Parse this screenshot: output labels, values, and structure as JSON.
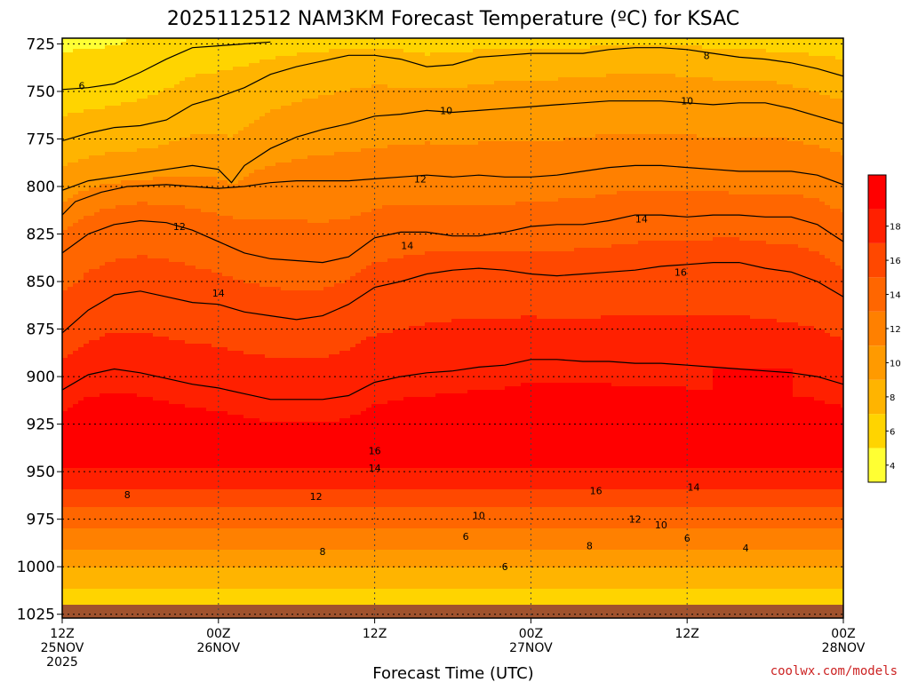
{
  "chart_data": {
    "type": "heatmap",
    "title": "2025112512 NAM3KM Forecast Temperature (ºC) for KSAC",
    "xlabel": "Forecast Time (UTC)",
    "ylabel": "",
    "credit": "coolwx.com/models",
    "x_hours_range": [
      0,
      60
    ],
    "x_ticks": [
      {
        "hour": 0,
        "line1": "12Z",
        "line2": "25NOV",
        "line3": "2025"
      },
      {
        "hour": 12,
        "line1": "00Z",
        "line2": "26NOV",
        "line3": ""
      },
      {
        "hour": 24,
        "line1": "12Z",
        "line2": "",
        "line3": ""
      },
      {
        "hour": 36,
        "line1": "00Z",
        "line2": "27NOV",
        "line3": ""
      },
      {
        "hour": 48,
        "line1": "12Z",
        "line2": "",
        "line3": ""
      },
      {
        "hour": 60,
        "line1": "00Z",
        "line2": "28NOV",
        "line3": ""
      }
    ],
    "y_ticks": [
      725,
      750,
      775,
      800,
      825,
      850,
      875,
      900,
      925,
      950,
      975,
      1000,
      1025
    ],
    "y_range_hpa": [
      722,
      1027
    ],
    "ground_hpa": 1020,
    "grid": true,
    "colorbar": {
      "ticks": [
        4,
        6,
        8,
        10,
        12,
        14,
        16,
        18
      ],
      "bins": [
        {
          "from": 3,
          "to": 5,
          "color": "#ffff33"
        },
        {
          "from": 5,
          "to": 7,
          "color": "#ffd400"
        },
        {
          "from": 7,
          "to": 9,
          "color": "#ffb400"
        },
        {
          "from": 9,
          "to": 11,
          "color": "#ff9a00"
        },
        {
          "from": 11,
          "to": 13,
          "color": "#ff8000"
        },
        {
          "from": 13,
          "to": 15,
          "color": "#ff6600"
        },
        {
          "from": 15,
          "to": 17,
          "color": "#ff4800"
        },
        {
          "from": 17,
          "to": 19,
          "color": "#ff2000"
        },
        {
          "from": 19,
          "to": 21,
          "color": "#ff0000"
        }
      ]
    },
    "ground_color": "#a0522d",
    "contours": [
      {
        "value": 6,
        "points": [
          [
            0,
            749
          ],
          [
            2,
            748
          ],
          [
            4,
            746
          ],
          [
            6,
            740
          ],
          [
            8,
            733
          ],
          [
            10,
            727
          ],
          [
            12,
            726
          ],
          [
            14,
            725
          ],
          [
            16,
            724
          ]
        ]
      },
      {
        "value": 8,
        "points": [
          [
            0,
            776
          ],
          [
            2,
            772
          ],
          [
            4,
            769
          ],
          [
            6,
            768
          ],
          [
            8,
            765
          ],
          [
            10,
            757
          ],
          [
            12,
            753
          ],
          [
            14,
            748
          ],
          [
            16,
            741
          ],
          [
            18,
            737
          ],
          [
            20,
            734
          ],
          [
            22,
            731
          ],
          [
            24,
            731
          ],
          [
            26,
            733
          ],
          [
            28,
            737
          ],
          [
            30,
            736
          ],
          [
            32,
            732
          ],
          [
            34,
            731
          ],
          [
            36,
            730
          ],
          [
            38,
            730
          ],
          [
            40,
            730
          ],
          [
            42,
            728
          ],
          [
            44,
            727
          ],
          [
            46,
            727
          ],
          [
            48,
            728
          ],
          [
            50,
            730
          ],
          [
            52,
            732
          ],
          [
            54,
            733
          ],
          [
            56,
            735
          ],
          [
            58,
            738
          ],
          [
            60,
            742
          ]
        ]
      },
      {
        "value": 10,
        "points": [
          [
            0,
            802
          ],
          [
            2,
            797
          ],
          [
            4,
            795
          ],
          [
            6,
            793
          ],
          [
            8,
            791
          ],
          [
            10,
            789
          ],
          [
            12,
            791
          ],
          [
            13,
            798
          ],
          [
            14,
            789
          ],
          [
            16,
            780
          ],
          [
            18,
            774
          ],
          [
            20,
            770
          ],
          [
            22,
            767
          ],
          [
            24,
            763
          ],
          [
            26,
            762
          ],
          [
            28,
            760
          ],
          [
            30,
            761
          ],
          [
            32,
            760
          ],
          [
            34,
            759
          ],
          [
            36,
            758
          ],
          [
            38,
            757
          ],
          [
            40,
            756
          ],
          [
            42,
            755
          ],
          [
            44,
            755
          ],
          [
            46,
            755
          ],
          [
            48,
            756
          ],
          [
            50,
            757
          ],
          [
            52,
            756
          ],
          [
            54,
            756
          ],
          [
            56,
            759
          ],
          [
            58,
            763
          ],
          [
            60,
            767
          ]
        ]
      },
      {
        "value": 12,
        "points": [
          [
            0,
            815
          ],
          [
            1,
            808
          ],
          [
            3,
            803
          ],
          [
            5,
            800
          ],
          [
            8,
            799
          ],
          [
            10,
            800
          ],
          [
            12,
            801
          ],
          [
            14,
            800
          ],
          [
            16,
            798
          ],
          [
            18,
            797
          ],
          [
            20,
            797
          ],
          [
            22,
            797
          ],
          [
            24,
            796
          ],
          [
            26,
            795
          ],
          [
            28,
            794
          ],
          [
            30,
            795
          ],
          [
            32,
            794
          ],
          [
            34,
            795
          ],
          [
            36,
            795
          ],
          [
            38,
            794
          ],
          [
            40,
            792
          ],
          [
            42,
            790
          ],
          [
            44,
            789
          ],
          [
            46,
            789
          ],
          [
            48,
            790
          ],
          [
            50,
            791
          ],
          [
            52,
            792
          ],
          [
            54,
            792
          ],
          [
            56,
            792
          ],
          [
            58,
            794
          ],
          [
            60,
            799
          ]
        ]
      },
      {
        "value": 14,
        "points": [
          [
            0,
            835
          ],
          [
            2,
            825
          ],
          [
            4,
            820
          ],
          [
            6,
            818
          ],
          [
            8,
            819
          ],
          [
            10,
            823
          ],
          [
            12,
            829
          ],
          [
            14,
            835
          ],
          [
            16,
            838
          ],
          [
            18,
            839
          ],
          [
            20,
            840
          ],
          [
            22,
            837
          ],
          [
            24,
            827
          ],
          [
            26,
            824
          ],
          [
            28,
            824
          ],
          [
            30,
            826
          ],
          [
            32,
            826
          ],
          [
            34,
            824
          ],
          [
            36,
            821
          ],
          [
            38,
            820
          ],
          [
            40,
            820
          ],
          [
            42,
            818
          ],
          [
            44,
            815
          ],
          [
            46,
            815
          ],
          [
            48,
            816
          ],
          [
            50,
            815
          ],
          [
            52,
            815
          ],
          [
            54,
            816
          ],
          [
            56,
            816
          ],
          [
            58,
            820
          ],
          [
            60,
            829
          ]
        ]
      },
      {
        "value": 16,
        "points": [
          [
            0,
            877
          ],
          [
            2,
            865
          ],
          [
            4,
            857
          ],
          [
            6,
            855
          ],
          [
            8,
            858
          ],
          [
            10,
            861
          ],
          [
            12,
            862
          ],
          [
            14,
            866
          ],
          [
            16,
            868
          ],
          [
            18,
            870
          ],
          [
            20,
            868
          ],
          [
            22,
            862
          ],
          [
            24,
            853
          ],
          [
            26,
            850
          ],
          [
            28,
            846
          ],
          [
            30,
            844
          ],
          [
            32,
            843
          ],
          [
            34,
            844
          ],
          [
            36,
            846
          ],
          [
            38,
            847
          ],
          [
            40,
            846
          ],
          [
            42,
            845
          ],
          [
            44,
            844
          ],
          [
            46,
            842
          ],
          [
            48,
            841
          ],
          [
            50,
            840
          ],
          [
            52,
            840
          ],
          [
            54,
            843
          ],
          [
            56,
            845
          ],
          [
            58,
            850
          ],
          [
            60,
            858
          ]
        ]
      },
      {
        "value": 18,
        "points": [
          [
            0,
            907
          ],
          [
            2,
            899
          ],
          [
            4,
            896
          ],
          [
            6,
            898
          ],
          [
            8,
            901
          ],
          [
            10,
            904
          ],
          [
            12,
            906
          ],
          [
            14,
            909
          ],
          [
            16,
            912
          ],
          [
            18,
            912
          ],
          [
            20,
            912
          ],
          [
            22,
            910
          ],
          [
            24,
            903
          ],
          [
            26,
            900
          ],
          [
            28,
            898
          ],
          [
            30,
            897
          ],
          [
            32,
            895
          ],
          [
            34,
            894
          ],
          [
            36,
            891
          ],
          [
            38,
            891
          ],
          [
            40,
            892
          ],
          [
            42,
            892
          ],
          [
            44,
            893
          ],
          [
            46,
            893
          ],
          [
            48,
            894
          ],
          [
            50,
            895
          ],
          [
            52,
            896
          ],
          [
            54,
            897
          ],
          [
            56,
            898
          ],
          [
            58,
            900
          ],
          [
            60,
            904
          ]
        ]
      }
    ],
    "contour_labels": [
      {
        "value": "6",
        "hour": 1.5,
        "hpa": 747
      },
      {
        "value": "8",
        "hour": 49.5,
        "hpa": 731
      },
      {
        "value": "10",
        "hour": 29.5,
        "hpa": 760
      },
      {
        "value": "10",
        "hour": 48.0,
        "hpa": 755
      },
      {
        "value": "12",
        "hour": 27.5,
        "hpa": 796
      },
      {
        "value": "12",
        "hour": 9.0,
        "hpa": 821
      },
      {
        "value": "14",
        "hour": 26.5,
        "hpa": 831
      },
      {
        "value": "14",
        "hour": 44.5,
        "hpa": 817
      },
      {
        "value": "14",
        "hour": 12.0,
        "hpa": 856
      },
      {
        "value": "16",
        "hour": 47.5,
        "hpa": 845
      },
      {
        "value": "16",
        "hour": 24.0,
        "hpa": 939
      },
      {
        "value": "14",
        "hour": 24.0,
        "hpa": 948
      },
      {
        "value": "16",
        "hour": 41.0,
        "hpa": 960
      },
      {
        "value": "14",
        "hour": 48.5,
        "hpa": 958
      },
      {
        "value": "12",
        "hour": 19.5,
        "hpa": 963
      },
      {
        "value": "12",
        "hour": 44.0,
        "hpa": 975
      },
      {
        "value": "10",
        "hour": 32.0,
        "hpa": 973
      },
      {
        "value": "10",
        "hour": 46.0,
        "hpa": 978
      },
      {
        "value": "8",
        "hour": 5.0,
        "hpa": 962
      },
      {
        "value": "8",
        "hour": 20.0,
        "hpa": 992
      },
      {
        "value": "8",
        "hour": 40.5,
        "hpa": 989
      },
      {
        "value": "6",
        "hour": 31.0,
        "hpa": 984
      },
      {
        "value": "6",
        "hour": 48.0,
        "hpa": 985
      },
      {
        "value": "6",
        "hour": 34.0,
        "hpa": 1000
      },
      {
        "value": "4",
        "hour": 52.5,
        "hpa": 990
      }
    ]
  }
}
